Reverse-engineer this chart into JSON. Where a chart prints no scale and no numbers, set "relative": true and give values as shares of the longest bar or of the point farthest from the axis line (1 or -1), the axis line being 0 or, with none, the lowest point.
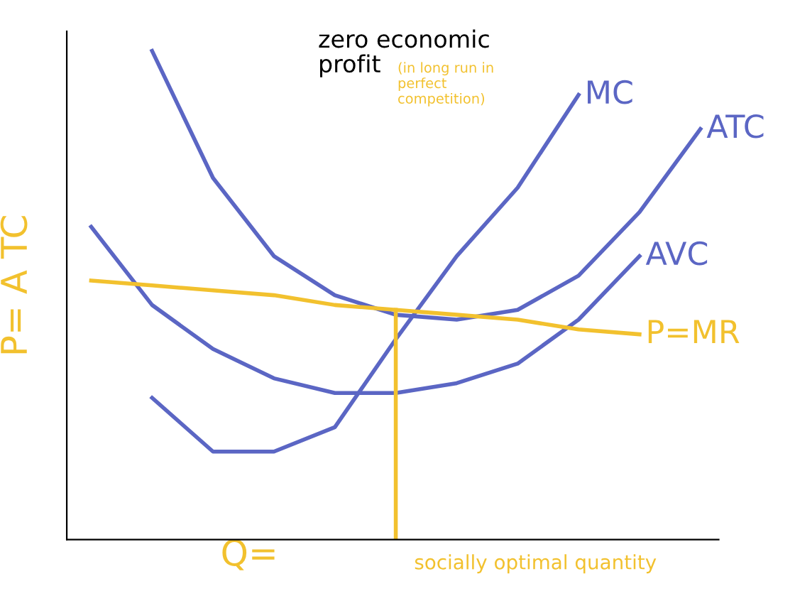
{
  "chart_data": {
    "type": "line",
    "relative": true,
    "title": "zero economic\nprofit",
    "xlabel": "Q=",
    "ylabel": "P= A TC",
    "legend": false,
    "grid": false,
    "marker": "none",
    "line_style": "solid",
    "categories": [
      null,
      null,
      null,
      null,
      null,
      null,
      null,
      null,
      null,
      null,
      null
    ],
    "series": [
      {
        "name": "ATC",
        "color": "#5b66c4",
        "values": [
          null,
          1.0,
          0.74,
          0.58,
          0.5,
          0.46,
          0.45,
          0.47,
          0.54,
          0.67,
          0.84
        ]
      },
      {
        "name": "MC",
        "color": "#5b66c4",
        "values": [
          null,
          0.29,
          0.18,
          0.18,
          0.23,
          0.41,
          0.58,
          0.72,
          0.91,
          null,
          null
        ]
      },
      {
        "name": "AVC",
        "color": "#5b66c4",
        "values": [
          0.64,
          0.48,
          0.39,
          0.33,
          0.3,
          0.3,
          0.32,
          0.36,
          0.45,
          0.58,
          null
        ]
      },
      {
        "name": "P=MR",
        "color": "#f2c12e",
        "values": [
          0.53,
          0.52,
          0.51,
          0.5,
          0.48,
          0.47,
          0.46,
          0.45,
          0.43,
          0.42,
          null
        ]
      }
    ],
    "annotations": [
      "(in long run in\nperfect\ncompetition)",
      "socially optimal quantity"
    ]
  }
}
